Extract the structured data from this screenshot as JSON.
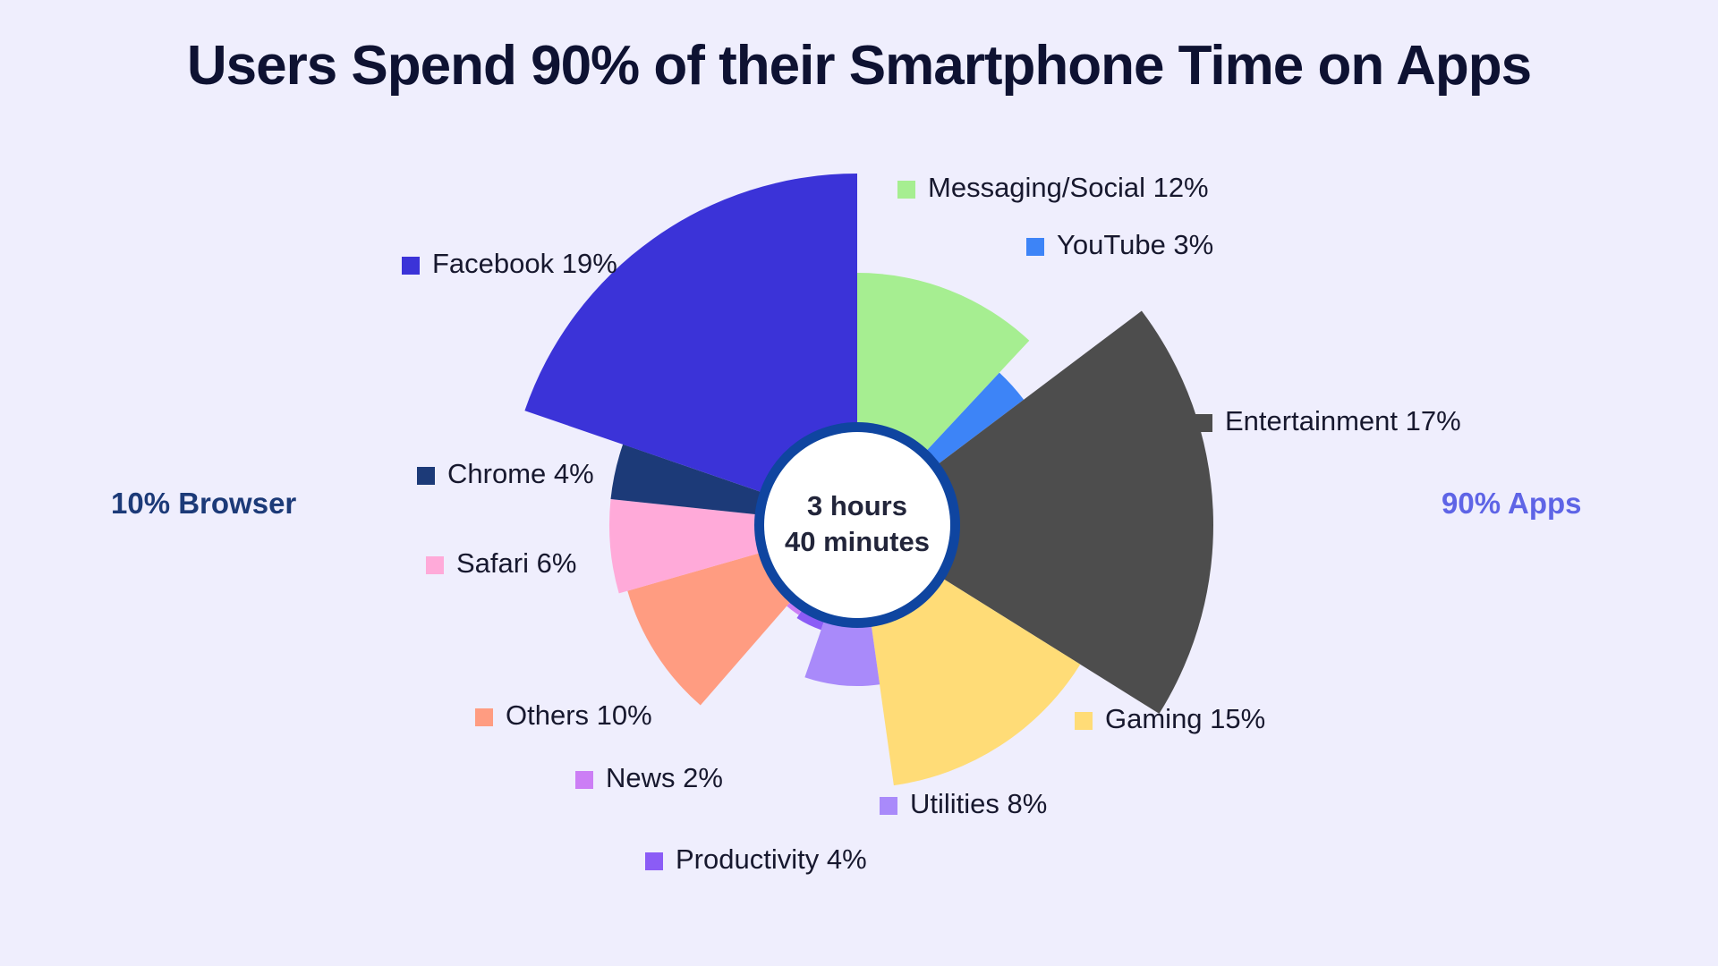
{
  "chart_data": {
    "type": "pie",
    "variant": "polar-area",
    "title": "Users Spend 90% of their Smartphone Time on Apps",
    "center_label": [
      "3 hours",
      "40 minutes"
    ],
    "groups": [
      {
        "name": "browser",
        "label": "10% Browser",
        "value": 10,
        "color": "#1c3a78"
      },
      {
        "name": "apps",
        "label": "90% Apps",
        "value": 90,
        "color": "#5e64e6"
      }
    ],
    "slices": [
      {
        "name": "messaging-social",
        "label": "Messaging/Social 12%",
        "value": 12,
        "color": "#a6ee91"
      },
      {
        "name": "youtube",
        "label": "YouTube 3%",
        "value": 3,
        "color": "#3d84f7"
      },
      {
        "name": "entertainment",
        "label": "Entertainment 17%",
        "value": 17,
        "color": "#4d4d4d"
      },
      {
        "name": "gaming",
        "label": "Gaming 15%",
        "value": 15,
        "color": "#ffdc77"
      },
      {
        "name": "utilities",
        "label": "Utilities 8%",
        "value": 8,
        "color": "#a98afa"
      },
      {
        "name": "productivity",
        "label": "Productivity 4%",
        "value": 4,
        "color": "#8b5cf6"
      },
      {
        "name": "news",
        "label": "News 2%",
        "value": 2,
        "color": "#cc7ef5"
      },
      {
        "name": "others",
        "label": "Others 10%",
        "value": 10,
        "color": "#ff9c81"
      },
      {
        "name": "safari",
        "label": "Safari 6%",
        "value": 6,
        "color": "#ffaad9"
      },
      {
        "name": "chrome",
        "label": "Chrome 4%",
        "value": 4,
        "color": "#1c3a78"
      },
      {
        "name": "facebook",
        "label": "Facebook 19%",
        "value": 19,
        "color": "#3b33d8"
      }
    ],
    "legend": "labels-around-chart"
  },
  "center_ring_color": "#0f45a0"
}
